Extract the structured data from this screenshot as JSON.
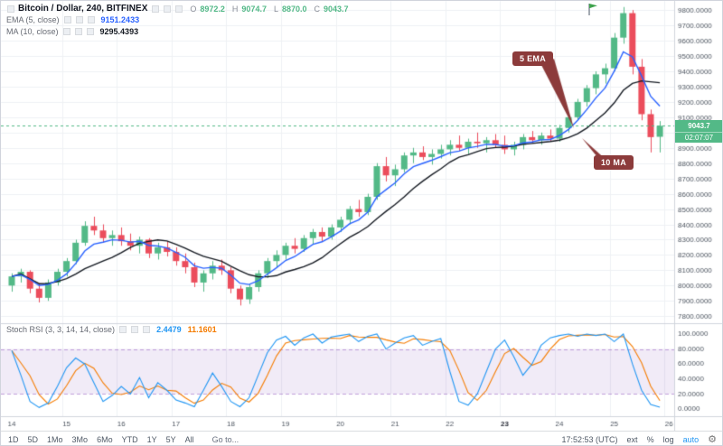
{
  "header": {
    "symbol_title": "Bitcoin / Dollar, 240, BITFINEX",
    "ohlc": {
      "o_label": "O",
      "o": "8972.2",
      "h_label": "H",
      "h": "9074.7",
      "l_label": "L",
      "l": "8870.0",
      "c_label": "C",
      "c": "9043.7"
    },
    "indicators": [
      {
        "label": "EMA (5, close)",
        "value": "9151.2433"
      },
      {
        "label": "MA (10, close)",
        "value": "9295.4393"
      }
    ]
  },
  "stoch_legend": {
    "label": "Stoch RSI (3, 3, 14, 14, close)",
    "k_value": "2.4479",
    "d_value": "11.1601"
  },
  "price_tag": {
    "price": "9043.7",
    "countdown": "02:07:07"
  },
  "callouts": {
    "ema": "5 EMA",
    "ma": "10 MA"
  },
  "toolbar": {
    "ranges": [
      "1D",
      "5D",
      "1Mo",
      "3Mo",
      "6Mo",
      "YTD",
      "1Y",
      "5Y",
      "All"
    ],
    "goto": "Go to...",
    "clock": "17:52:53 (UTC)",
    "ext": "ext",
    "percent": "%",
    "log": "log",
    "auto": "auto",
    "gear_glyph": "⚙"
  },
  "colors": {
    "up": "#53b987",
    "down": "#eb4d5c",
    "ema": "#2962ff",
    "ma": "#151a22",
    "stoch_k": "#2196f3",
    "stoch_d": "#f57c00",
    "band_fill": "rgba(143,87,189,0.12)",
    "band_line": "rgba(143,87,189,0.55)",
    "grid": "#eef0f4",
    "axis_text": "#4e5661",
    "border": "#d1d4dc",
    "price_line": "#53b987",
    "callout": "#8c3b3b",
    "flag": "#3fa34d"
  },
  "chart_data": [
    {
      "type": "candlestick",
      "title": "Bitcoin / Dollar, 240, BITFINEX",
      "x_labels": [
        "14",
        "15",
        "16",
        "17",
        "18",
        "19",
        "20",
        "21",
        "22",
        "23",
        "24",
        "25",
        "26"
      ],
      "bold_x_label": "23",
      "y_range": [
        7760,
        9860
      ],
      "y_tick_min": 7800,
      "y_tick_max": 9800,
      "y_tick_step": 100,
      "current_price": 9043.7,
      "flag_marker_above_candle": 67,
      "overlays": [
        {
          "name": "EMA 5",
          "kind": "ema",
          "period": 5
        },
        {
          "name": "MA 10",
          "kind": "sma",
          "period": 10
        }
      ],
      "candles": [
        [
          8000,
          8080,
          7960,
          8060
        ],
        [
          8060,
          8110,
          8020,
          8090
        ],
        [
          8090,
          8100,
          7950,
          7980
        ],
        [
          7980,
          8010,
          7890,
          7920
        ],
        [
          7920,
          8040,
          7900,
          8020
        ],
        [
          8020,
          8110,
          8000,
          8090
        ],
        [
          8090,
          8180,
          8060,
          8160
        ],
        [
          8160,
          8300,
          8140,
          8280
        ],
        [
          8280,
          8420,
          8260,
          8390
        ],
        [
          8390,
          8450,
          8330,
          8360
        ],
        [
          8360,
          8400,
          8280,
          8310
        ],
        [
          8310,
          8360,
          8260,
          8330
        ],
        [
          8330,
          8380,
          8260,
          8290
        ],
        [
          8290,
          8340,
          8230,
          8260
        ],
        [
          8260,
          8320,
          8210,
          8300
        ],
        [
          8300,
          8310,
          8180,
          8210
        ],
        [
          8210,
          8280,
          8170,
          8250
        ],
        [
          8250,
          8290,
          8190,
          8220
        ],
        [
          8220,
          8250,
          8130,
          8160
        ],
        [
          8160,
          8210,
          8080,
          8120
        ],
        [
          8120,
          8150,
          7990,
          8020
        ],
        [
          8020,
          8100,
          7960,
          8080
        ],
        [
          8080,
          8160,
          8040,
          8130
        ],
        [
          8130,
          8170,
          8070,
          8100
        ],
        [
          8100,
          8120,
          7950,
          7980
        ],
        [
          7980,
          8000,
          7870,
          7910
        ],
        [
          7910,
          8010,
          7880,
          7990
        ],
        [
          7990,
          8100,
          7960,
          8080
        ],
        [
          8080,
          8180,
          8050,
          8160
        ],
        [
          8160,
          8230,
          8120,
          8200
        ],
        [
          8200,
          8280,
          8170,
          8260
        ],
        [
          8260,
          8310,
          8210,
          8240
        ],
        [
          8240,
          8330,
          8220,
          8310
        ],
        [
          8310,
          8370,
          8270,
          8350
        ],
        [
          8350,
          8380,
          8290,
          8320
        ],
        [
          8320,
          8400,
          8300,
          8380
        ],
        [
          8380,
          8450,
          8350,
          8430
        ],
        [
          8430,
          8520,
          8400,
          8500
        ],
        [
          8500,
          8560,
          8450,
          8480
        ],
        [
          8480,
          8600,
          8460,
          8580
        ],
        [
          8580,
          8800,
          8560,
          8780
        ],
        [
          8780,
          8840,
          8680,
          8720
        ],
        [
          8720,
          8790,
          8650,
          8760
        ],
        [
          8760,
          8870,
          8740,
          8850
        ],
        [
          8850,
          8900,
          8800,
          8870
        ],
        [
          8870,
          8910,
          8820,
          8840
        ],
        [
          8840,
          8890,
          8790,
          8860
        ],
        [
          8860,
          8920,
          8830,
          8890
        ],
        [
          8890,
          8950,
          8850,
          8920
        ],
        [
          8920,
          8980,
          8880,
          8900
        ],
        [
          8900,
          8960,
          8860,
          8940
        ],
        [
          8940,
          9000,
          8900,
          8930
        ],
        [
          8930,
          8970,
          8870,
          8950
        ],
        [
          8950,
          8990,
          8900,
          8920
        ],
        [
          8920,
          8980,
          8860,
          8890
        ],
        [
          8890,
          8940,
          8850,
          8920
        ],
        [
          8920,
          8990,
          8890,
          8970
        ],
        [
          8970,
          9010,
          8930,
          8950
        ],
        [
          8950,
          9000,
          8920,
          8980
        ],
        [
          8980,
          9020,
          8940,
          8960
        ],
        [
          8960,
          9050,
          8940,
          9030
        ],
        [
          9030,
          9120,
          9000,
          9100
        ],
        [
          9100,
          9220,
          9080,
          9200
        ],
        [
          9200,
          9310,
          9170,
          9290
        ],
        [
          9290,
          9400,
          9250,
          9380
        ],
        [
          9380,
          9450,
          9320,
          9420
        ],
        [
          9420,
          9650,
          9400,
          9620
        ],
        [
          9620,
          9820,
          9580,
          9780
        ],
        [
          9780,
          9800,
          9380,
          9430
        ],
        [
          9430,
          9480,
          9080,
          9120
        ],
        [
          9120,
          9150,
          8870,
          8970
        ],
        [
          8972.2,
          9074.7,
          8870.0,
          9043.7
        ]
      ]
    },
    {
      "type": "line",
      "title": "Stoch RSI (3, 3, 14, 14, close)",
      "y_range": [
        0,
        100
      ],
      "y_ticks": [
        100,
        80,
        60,
        40,
        20,
        0
      ],
      "band": [
        20,
        80
      ],
      "d_smoothing": 3,
      "series": [
        {
          "name": "K",
          "values": [
            78,
            45,
            10,
            2,
            8,
            30,
            55,
            68,
            60,
            35,
            10,
            18,
            30,
            20,
            42,
            15,
            35,
            25,
            12,
            8,
            3,
            25,
            48,
            30,
            10,
            3,
            15,
            45,
            75,
            92,
            97,
            85,
            95,
            100,
            88,
            96,
            98,
            100,
            90,
            97,
            100,
            80,
            88,
            95,
            98,
            85,
            90,
            94,
            50,
            10,
            5,
            20,
            50,
            80,
            92,
            70,
            45,
            60,
            85,
            95,
            98,
            100,
            97,
            100,
            98,
            100,
            90,
            100,
            60,
            25,
            6,
            2.4479
          ]
        }
      ]
    }
  ]
}
